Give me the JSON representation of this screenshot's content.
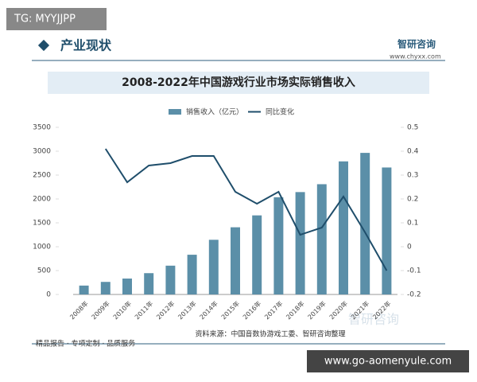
{
  "header": {
    "tag": "TG: MYYJJPP",
    "section": "产业现状",
    "brand": "智研咨询",
    "url": "www.chyxx.com"
  },
  "chart_data": {
    "type": "combo",
    "title": "2008-2022年中国游戏行业市场实际销售收入",
    "categories": [
      "2008年",
      "2009年",
      "2010年",
      "2011年",
      "2012年",
      "2013年",
      "2014年",
      "2015年",
      "2016年",
      "2017年",
      "2018年",
      "2019年",
      "2020年",
      "2021年",
      "2022年"
    ],
    "series": [
      {
        "name": "销售收入（亿元）",
        "type": "bar",
        "color": "#5b8fa8",
        "values": [
          186,
          263,
          333,
          446,
          603,
          832,
          1145,
          1407,
          1656,
          2036,
          2144,
          2309,
          2787,
          2965,
          2659
        ]
      },
      {
        "name": "同比变化",
        "type": "line",
        "axis": "y2",
        "color": "#1f4e6b",
        "values": [
          null,
          0.41,
          0.27,
          0.34,
          0.35,
          0.38,
          0.38,
          0.23,
          0.18,
          0.23,
          0.05,
          0.08,
          0.21,
          0.06,
          -0.1
        ]
      }
    ],
    "ylim": [
      0,
      3500
    ],
    "yticks": [
      0,
      500,
      1000,
      1500,
      2000,
      2500,
      3000,
      3500
    ],
    "y2lim": [
      -0.2,
      0.5
    ],
    "y2ticks": [
      -0.2,
      -0.1,
      0,
      0.1,
      0.2,
      0.3,
      0.4,
      0.5
    ],
    "watermark": "智研咨询"
  },
  "footer": {
    "source": "资料来源：中国音数协游戏工委、智研咨询整理",
    "tagline": "精品报告 · 专项定制 · 品质服务",
    "website": "www.go-aomenyule.com"
  }
}
